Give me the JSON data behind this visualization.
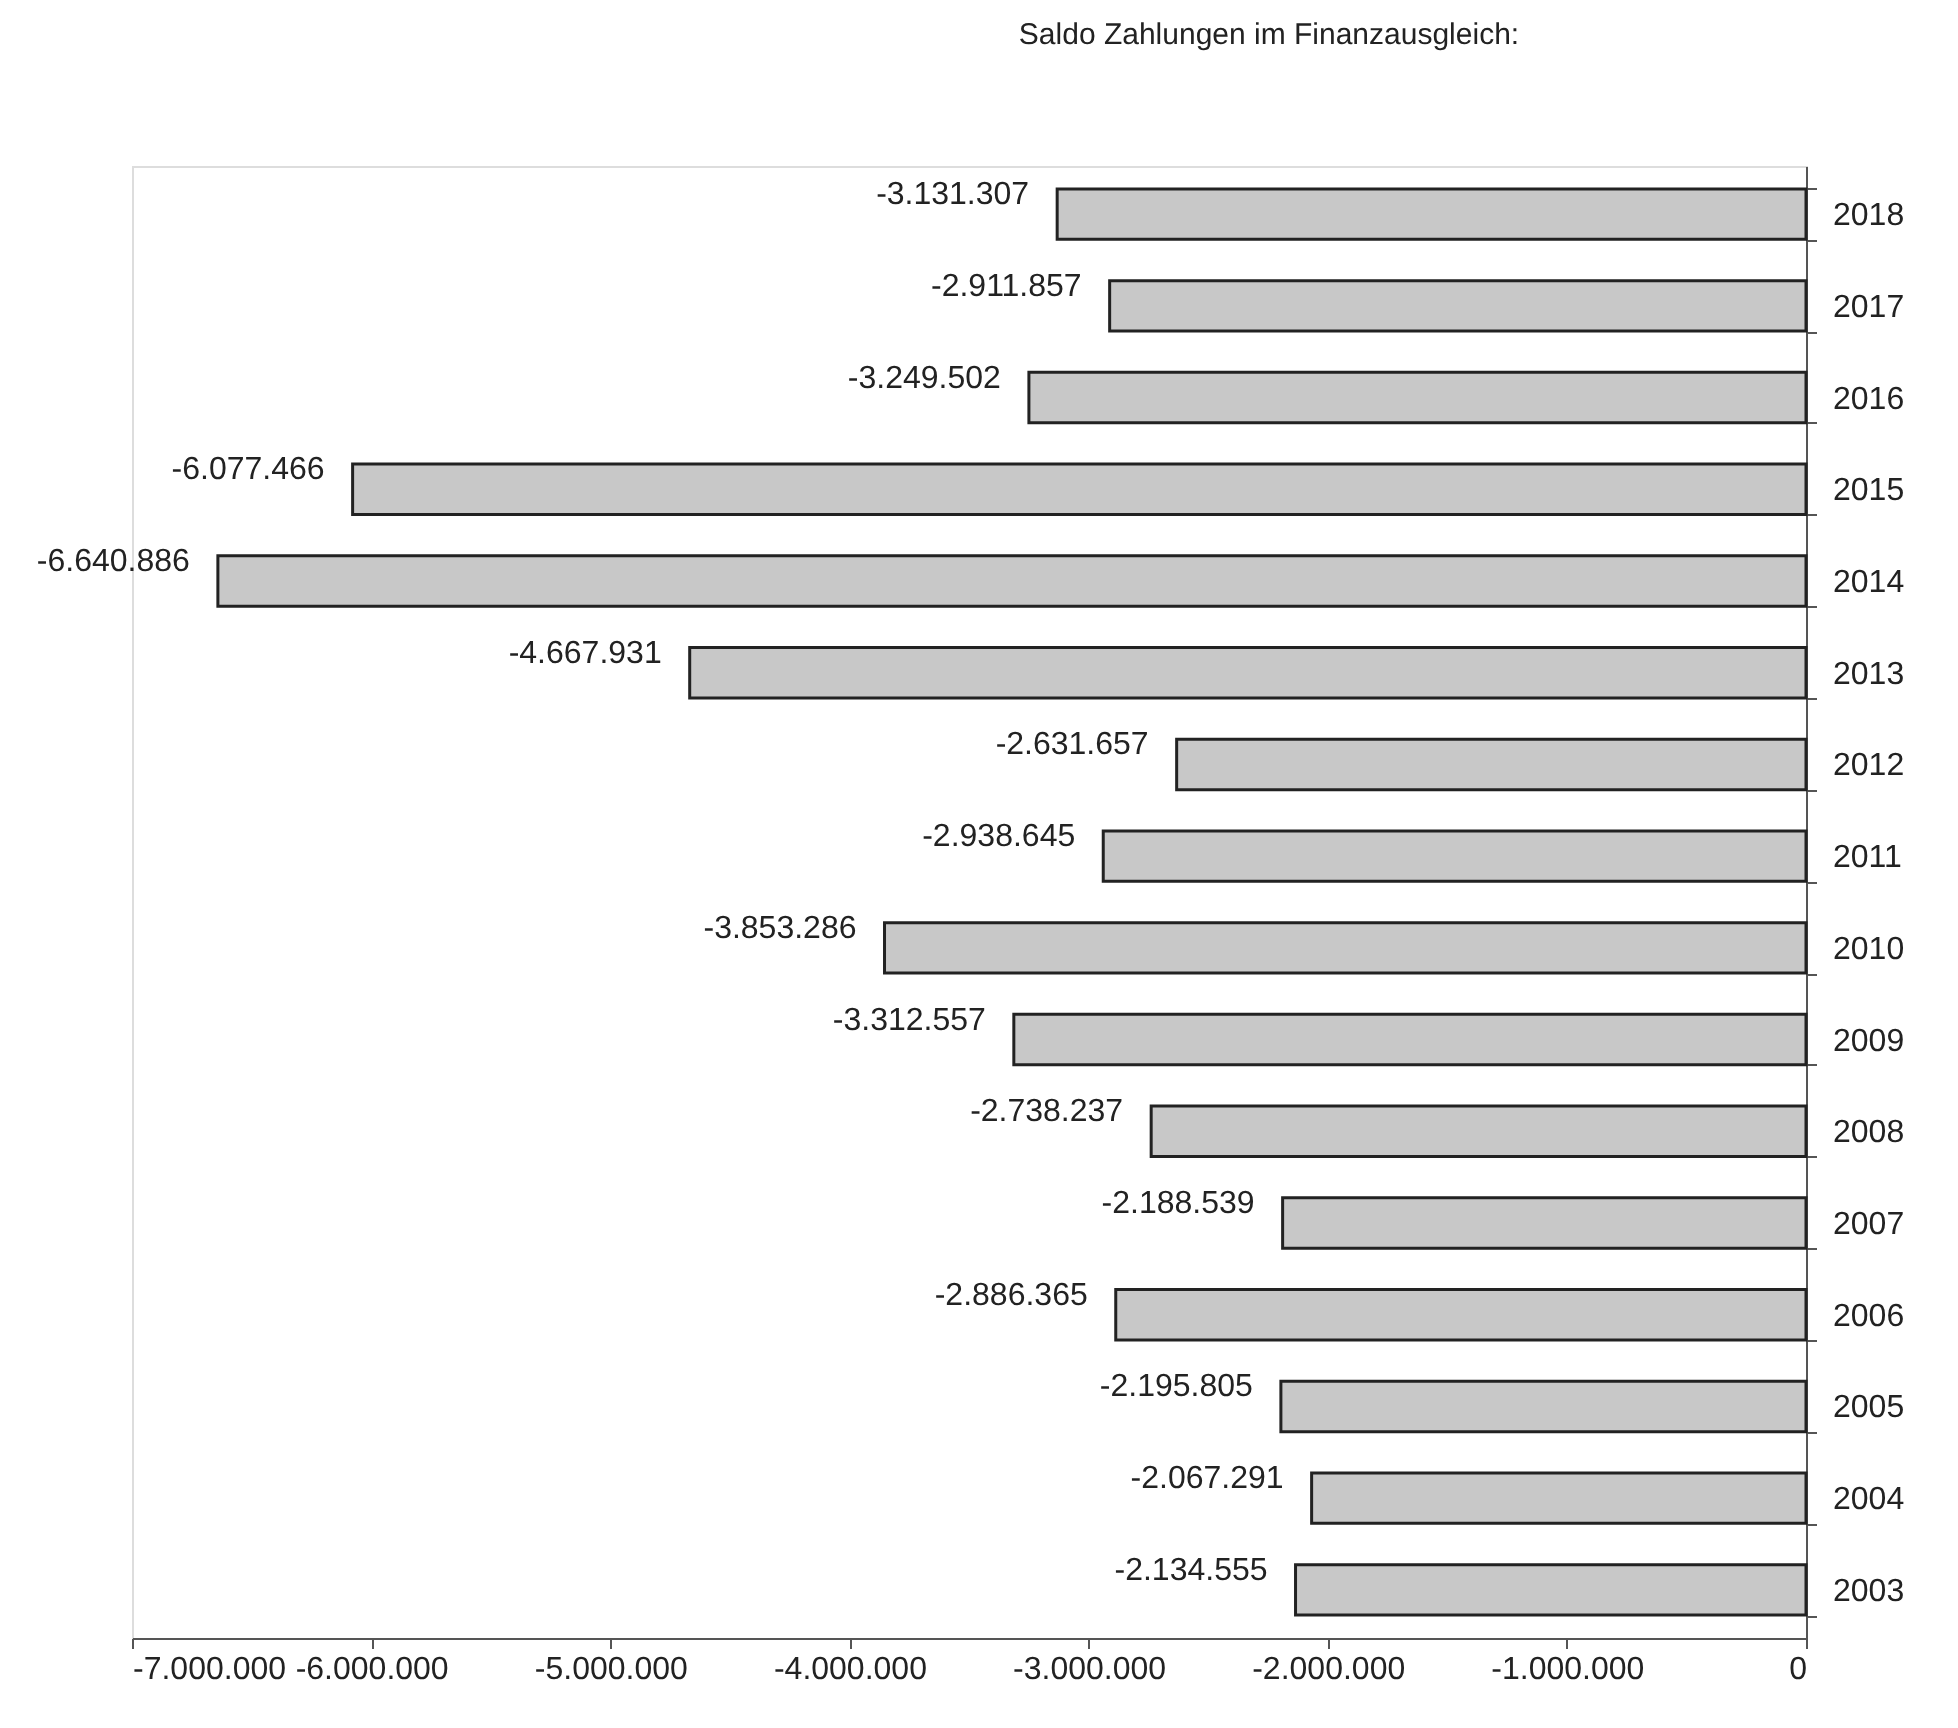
{
  "chart_data": {
    "type": "bar",
    "orientation": "horizontal",
    "title": "Saldo Zahlungen im Finanzausgleich:",
    "categories": [
      "2018",
      "2017",
      "2016",
      "2015",
      "2014",
      "2013",
      "2012",
      "2011",
      "2010",
      "2009",
      "2008",
      "2007",
      "2006",
      "2005",
      "2004",
      "2003"
    ],
    "values": [
      -3131307,
      -2911857,
      -3249502,
      -6077466,
      -6640886,
      -4667931,
      -2631657,
      -2938645,
      -3853286,
      -3312557,
      -2738237,
      -2188539,
      -2886365,
      -2195805,
      -2067291,
      -2134555
    ],
    "value_labels": [
      "-3.131.307",
      "-2.911.857",
      "-3.249.502",
      "-6.077.466",
      "-6.640.886",
      "-4.667.931",
      "-2.631.657",
      "-2.938.645",
      "-3.853.286",
      "-3.312.557",
      "-2.738.237",
      "-2.188.539",
      "-2.886.365",
      "-2.195.805",
      "-2.067.291",
      "-2.134.555"
    ],
    "color": "#c8c8c8",
    "xlim": [
      -7000000,
      0
    ],
    "xticks": [
      {
        "value": -7000000,
        "label": "-7.000.000"
      },
      {
        "value": -6000000,
        "label": "-6.000.000"
      },
      {
        "value": -5000000,
        "label": "-5.000.000"
      },
      {
        "value": -4000000,
        "label": "-4.000.000"
      },
      {
        "value": -3000000,
        "label": "-3.000.000"
      },
      {
        "value": -2000000,
        "label": "-2.000.000"
      },
      {
        "value": -1000000,
        "label": "-1.000.000"
      },
      0
    ],
    "grid": false
  }
}
